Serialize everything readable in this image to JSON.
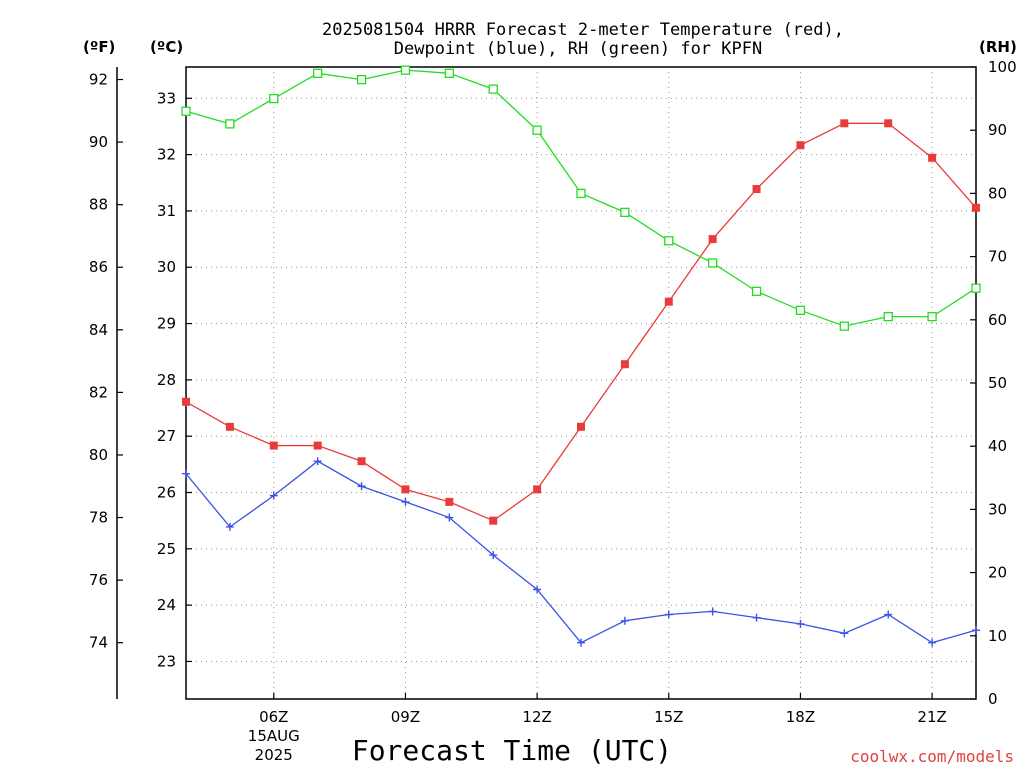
{
  "chart_data": {
    "type": "line",
    "title_line1": "2025081504 HRRR Forecast 2-meter Temperature (red),",
    "title_line2": "Dewpoint (blue), RH (green) for KPFN",
    "xlabel": "Forecast Time (UTC)",
    "credit": "coolwx.com/models",
    "units": {
      "fahrenheit": "(ºF)",
      "celsius": "(ºC)",
      "rh": "(RH)"
    },
    "x_hours": [
      4,
      5,
      6,
      7,
      8,
      9,
      10,
      11,
      12,
      13,
      14,
      15,
      16,
      17,
      18,
      19,
      20,
      21,
      22
    ],
    "x_ticks": [
      {
        "hour": 6,
        "label": "06Z",
        "date": "15AUG",
        "year": "2025"
      },
      {
        "hour": 9,
        "label": "09Z"
      },
      {
        "hour": 12,
        "label": "12Z"
      },
      {
        "hour": 15,
        "label": "15Z"
      },
      {
        "hour": 18,
        "label": "18Z"
      },
      {
        "hour": 21,
        "label": "21Z"
      }
    ],
    "xlim": [
      4,
      22
    ],
    "fahrenheit_axis": {
      "ticks": [
        74,
        76,
        78,
        80,
        82,
        84,
        86,
        88,
        90,
        92
      ],
      "range": [
        72.2,
        92.4
      ]
    },
    "celsius_axis": {
      "ticks": [
        23,
        24,
        25,
        26,
        27,
        28,
        29,
        30,
        31,
        32,
        33
      ]
    },
    "rh_axis": {
      "ticks": [
        0,
        10,
        20,
        30,
        40,
        50,
        60,
        70,
        80,
        90,
        100
      ],
      "range": [
        0,
        100
      ]
    },
    "series": [
      {
        "name": "Temperature",
        "axis": "fahrenheit",
        "color": "#e83c3c",
        "marker": "square-filled",
        "values": [
          81.7,
          80.9,
          80.3,
          80.3,
          79.8,
          78.9,
          78.5,
          77.9,
          78.9,
          80.9,
          82.9,
          84.9,
          86.9,
          88.5,
          89.9,
          90.6,
          90.6,
          89.5,
          87.9
        ]
      },
      {
        "name": "Dewpoint",
        "axis": "fahrenheit",
        "color": "#3a52e6",
        "marker": "plus",
        "values": [
          79.4,
          77.7,
          78.7,
          79.8,
          79.0,
          78.5,
          78.0,
          76.8,
          75.7,
          74.0,
          74.7,
          74.9,
          75.0,
          74.8,
          74.6,
          74.3,
          74.9,
          74.0,
          74.4
        ]
      },
      {
        "name": "RH",
        "axis": "rh",
        "color": "#22dd22",
        "marker": "square-open",
        "values": [
          93,
          91,
          95,
          99,
          98,
          99.5,
          99,
          96.5,
          90,
          80,
          77,
          72.5,
          69,
          64.5,
          61.5,
          59,
          60.5,
          60.5,
          65
        ]
      }
    ]
  }
}
